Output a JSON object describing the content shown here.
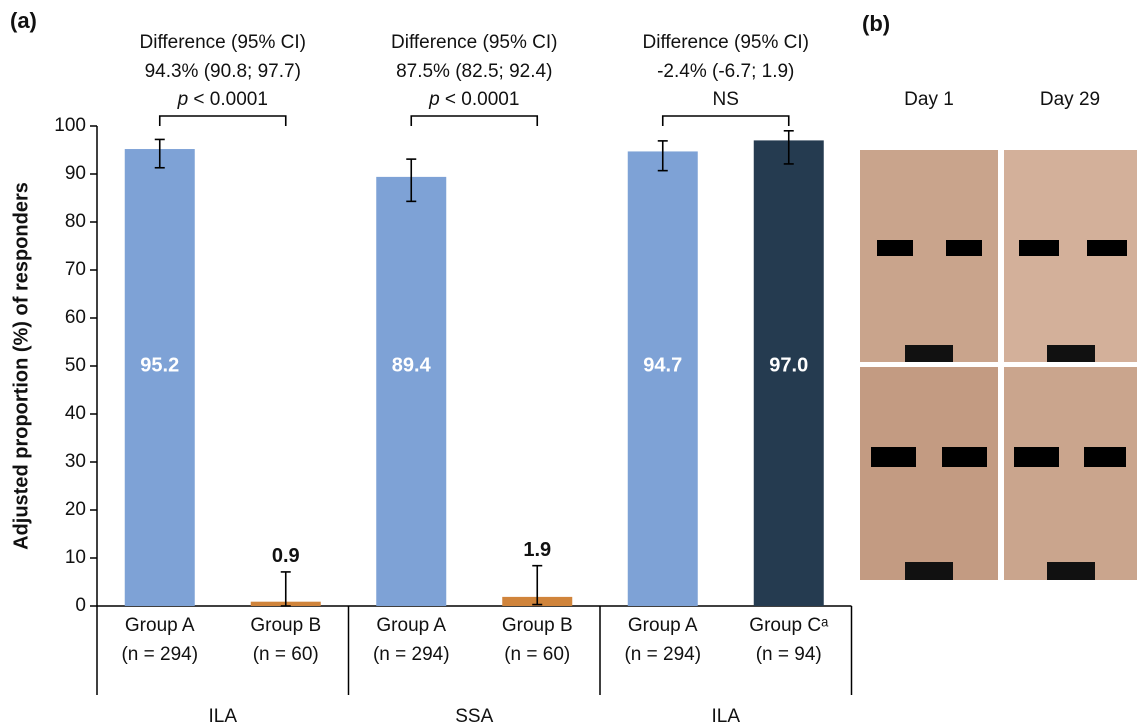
{
  "chart_data": {
    "type": "bar",
    "panel_label": "(a)",
    "y_label": "Adjusted proportion (%) of responders",
    "ylim": [
      0,
      100
    ],
    "yticks": [
      0,
      10,
      20,
      30,
      40,
      50,
      60,
      70,
      80,
      90,
      100
    ],
    "categories": [
      "Group A",
      "Group B",
      "Group A",
      "Group B",
      "Group A",
      "Group Cᵃ"
    ],
    "category_sizes": [
      "(n = 294)",
      "(n = 60)",
      "(n = 294)",
      "(n = 60)",
      "(n = 294)",
      "(n = 94)"
    ],
    "groups": [
      "ILA",
      "SSA",
      "ILA"
    ],
    "values": [
      95.2,
      0.9,
      89.4,
      1.9,
      94.7,
      97.0
    ],
    "value_labels": [
      "95.2",
      "0.9",
      "89.4",
      "1.9",
      "94.7",
      "97.0"
    ],
    "error_low": [
      91.3,
      0,
      84.3,
      0.3,
      90.7,
      92.1
    ],
    "error_high": [
      97.2,
      7.1,
      93.1,
      8.4,
      96.9,
      99.0
    ],
    "colors": [
      "#7ea2d6",
      "#d0843b",
      "#7ea2d6",
      "#d0843b",
      "#7ea2d6",
      "#253b50"
    ],
    "comparisons": [
      {
        "heading": "Difference (95% CI)",
        "estimate": "94.3% (90.8; 97.7)",
        "p_symbol": "p",
        "p_text": "< 0.0001"
      },
      {
        "heading": "Difference (95% CI)",
        "estimate": "87.5% (82.5; 92.4)",
        "p_symbol": "p",
        "p_text": "< 0.0001"
      },
      {
        "heading": "Difference (95% CI)",
        "estimate": "-2.4% (-6.7; 1.9)",
        "p_text": "NS"
      }
    ]
  },
  "photos": {
    "panel_label": "(b)",
    "columns": [
      "Day 1",
      "Day 29"
    ]
  }
}
